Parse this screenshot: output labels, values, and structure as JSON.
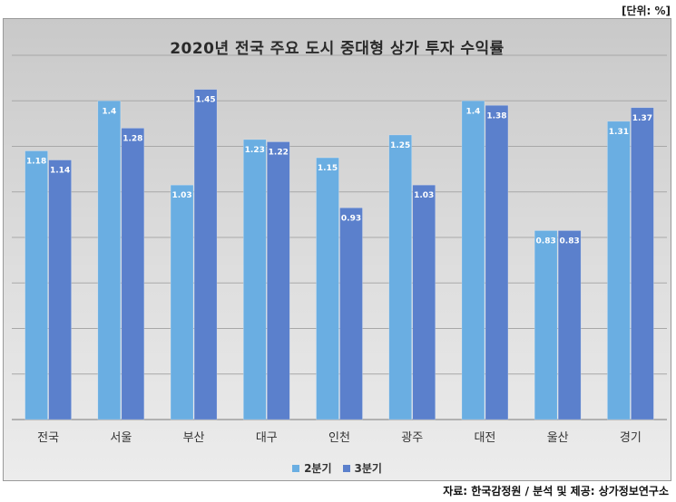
{
  "unit_note": "[단위: %]",
  "source": "자료: 한국감정원 / 분석 및 제공: 상가정보연구소",
  "colors": {
    "series1": "#6aaee2",
    "series2": "#5b80cc",
    "gridline": "#a8a8a8"
  },
  "chart_data": {
    "type": "bar",
    "title": "2020년 전국 주요 도시 중대형 상가 투자 수익률",
    "xlabel": "",
    "ylabel": "",
    "categories": [
      "전국",
      "서울",
      "부산",
      "대구",
      "인천",
      "광주",
      "대전",
      "울산",
      "경기"
    ],
    "series": [
      {
        "name": "2분기",
        "values": [
          1.18,
          1.4,
          1.03,
          1.23,
          1.15,
          1.25,
          1.4,
          0.83,
          1.31
        ]
      },
      {
        "name": "3분기",
        "values": [
          1.14,
          1.28,
          1.45,
          1.22,
          0.93,
          1.03,
          1.38,
          0.83,
          1.37
        ]
      }
    ],
    "ylim": [
      0,
      1.6
    ],
    "grid": true,
    "legend_position": "bottom",
    "data_labels": true
  }
}
